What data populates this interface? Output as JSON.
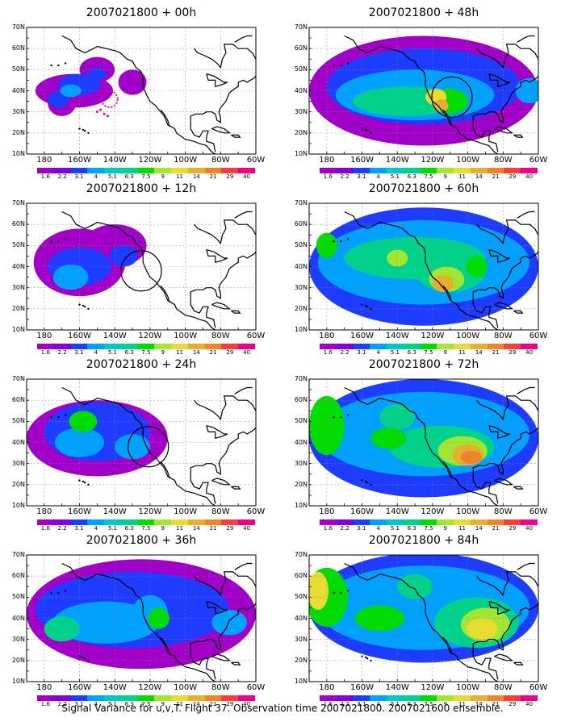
{
  "caption": "Signal Variance for u,v,T. Flight 37. Observation time 2007021800. 2007021600 ensemble.",
  "panels": [
    {
      "title": "2007021800 + 00h",
      "circle": null
    },
    {
      "title": "2007021800 + 48h",
      "circle": {
        "lon": -109,
        "lat": 37
      }
    },
    {
      "title": "2007021800 + 12h",
      "circle": {
        "lon": -125,
        "lat": 38
      }
    },
    {
      "title": "2007021800 + 60h",
      "circle": null
    },
    {
      "title": "2007021800 + 24h",
      "circle": {
        "lon": -121,
        "lat": 38
      }
    },
    {
      "title": "2007021800 + 72h",
      "circle": null
    },
    {
      "title": "2007021800 + 36h",
      "circle": null
    },
    {
      "title": "2007021800 + 84h",
      "circle": null
    }
  ],
  "lat_labels": [
    "70N",
    "60N",
    "50N",
    "40N",
    "30N",
    "20N",
    "10N"
  ],
  "lon_labels": [
    "180",
    "160W",
    "140W",
    "120W",
    "100W",
    "80W",
    "60W"
  ],
  "colorbar": {
    "labels": [
      "1.6",
      "2.2",
      "3.1",
      "4",
      "5.1",
      "6.3",
      "7.5",
      "9",
      "11",
      "14",
      "21",
      "29",
      "40"
    ],
    "colors": [
      "#a000c8",
      "#8200dc",
      "#1e3cff",
      "#00a0ff",
      "#00c8c8",
      "#00d28c",
      "#00dc00",
      "#a0e632",
      "#e6dc32",
      "#e6af2d",
      "#f08228",
      "#fa3c3c",
      "#f00082"
    ]
  },
  "map_extent": {
    "lon_min": -190,
    "lon_max": -60,
    "lat_min": 10,
    "lat_max": 70
  }
}
